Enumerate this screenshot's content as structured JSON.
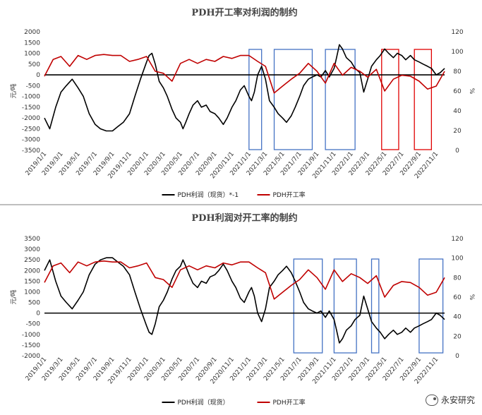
{
  "chart_data": [
    {
      "type": "line",
      "title": "PDH开工率对利润的制约",
      "ylabel_left": "元/吨",
      "ylabel_right": "%",
      "ylim_left": [
        -3500,
        2000
      ],
      "yticks_left": [
        2000,
        1500,
        1000,
        500,
        0,
        -500,
        -1000,
        -1500,
        -2000,
        -2500,
        -3000,
        -3500
      ],
      "ylim_right": [
        0,
        120
      ],
      "yticks_right": [
        0,
        20,
        40,
        60,
        80,
        100,
        120
      ],
      "x_ticks": [
        "2019/1/1",
        "2019/3/1",
        "2019/5/1",
        "2019/7/1",
        "2019/9/1",
        "2019/11/1",
        "2020/1/1",
        "2020/3/1",
        "2020/5/1",
        "2020/7/1",
        "2020/9/1",
        "2020/11/1",
        "2021/1/1",
        "2021/3/1",
        "2021/5/1",
        "2021/7/1",
        "2021/9/1",
        "2021/11/1",
        "2022/1/1",
        "2022/3/1",
        "2022/5/1",
        "2022/7/1",
        "2022/9/1",
        "2022/11/1"
      ],
      "series": [
        {
          "name": "PDH利润（现货）*-1",
          "color": "#000000",
          "axis": "left",
          "x": [
            "2019/1/1",
            "2019/1/20",
            "2019/2/10",
            "2019/3/1",
            "2019/3/20",
            "2019/4/10",
            "2019/5/1",
            "2019/5/20",
            "2019/6/10",
            "2019/7/1",
            "2019/7/20",
            "2019/8/10",
            "2019/9/1",
            "2019/9/20",
            "2019/10/10",
            "2019/11/1",
            "2019/11/20",
            "2019/12/10",
            "2020/1/1",
            "2020/1/10",
            "2020/1/20",
            "2020/2/1",
            "2020/2/15",
            "2020/3/1",
            "2020/3/15",
            "2020/4/1",
            "2020/4/15",
            "2020/5/1",
            "2020/5/10",
            "2020/5/20",
            "2020/6/1",
            "2020/6/15",
            "2020/7/1",
            "2020/7/15",
            "2020/8/1",
            "2020/8/15",
            "2020/9/1",
            "2020/9/15",
            "2020/10/1",
            "2020/10/15",
            "2020/11/1",
            "2020/11/15",
            "2020/12/1",
            "2020/12/15",
            "2021/1/1",
            "2021/1/10",
            "2021/1/20",
            "2021/2/1",
            "2021/2/15",
            "2021/3/1",
            "2021/3/15",
            "2021/4/1",
            "2021/4/15",
            "2021/5/1",
            "2021/5/15",
            "2021/6/1",
            "2021/6/15",
            "2021/7/1",
            "2021/7/15",
            "2021/8/1",
            "2021/8/15",
            "2021/9/1",
            "2021/9/15",
            "2021/10/1",
            "2021/10/15",
            "2021/11/1",
            "2021/11/10",
            "2021/11/20",
            "2021/12/1",
            "2021/12/15",
            "2022/1/1",
            "2022/1/15",
            "2022/2/1",
            "2022/2/15",
            "2022/3/1",
            "2022/3/15",
            "2022/4/1",
            "2022/4/15",
            "2022/5/1",
            "2022/5/15",
            "2022/6/1",
            "2022/6/15",
            "2022/7/1",
            "2022/7/15",
            "2022/8/1",
            "2022/8/15",
            "2022/9/1",
            "2022/9/15",
            "2022/10/1",
            "2022/10/15",
            "2022/11/1",
            "2022/11/15",
            "2022/12/1"
          ],
          "values": [
            -2000,
            -2500,
            -1500,
            -800,
            -500,
            -200,
            -600,
            -1000,
            -1800,
            -2300,
            -2500,
            -2600,
            -2600,
            -2400,
            -2200,
            -1800,
            -1000,
            -200,
            600,
            900,
            1000,
            500,
            -300,
            -600,
            -1000,
            -1600,
            -2000,
            -2200,
            -2500,
            -2200,
            -1800,
            -1400,
            -1200,
            -1500,
            -1400,
            -1700,
            -1800,
            -2000,
            -2300,
            -2000,
            -1500,
            -1200,
            -700,
            -500,
            -1000,
            -1200,
            -800,
            0,
            400,
            -200,
            -1200,
            -1500,
            -1800,
            -2000,
            -2200,
            -1900,
            -1500,
            -1000,
            -500,
            -200,
            -100,
            0,
            -100,
            200,
            -100,
            300,
            800,
            1400,
            1200,
            800,
            600,
            300,
            100,
            -800,
            -200,
            400,
            700,
            900,
            1200,
            1000,
            800,
            1000,
            900,
            700,
            900,
            700,
            600,
            500,
            400,
            300,
            0,
            100,
            300
          ]
        },
        {
          "name": "PDH开工率",
          "color": "#c00000",
          "axis": "right",
          "x": [
            "2019/1/1",
            "2019/2/1",
            "2019/3/1",
            "2019/4/1",
            "2019/5/1",
            "2019/6/1",
            "2019/7/1",
            "2019/8/1",
            "2019/9/1",
            "2019/10/1",
            "2019/11/1",
            "2019/12/1",
            "2020/1/1",
            "2020/2/1",
            "2020/3/1",
            "2020/4/1",
            "2020/5/1",
            "2020/6/1",
            "2020/7/1",
            "2020/8/1",
            "2020/9/1",
            "2020/10/1",
            "2020/11/1",
            "2020/12/1",
            "2021/1/1",
            "2021/2/1",
            "2021/3/1",
            "2021/4/1",
            "2021/5/1",
            "2021/6/1",
            "2021/7/1",
            "2021/8/1",
            "2021/9/1",
            "2021/10/1",
            "2021/11/1",
            "2021/12/1",
            "2022/1/1",
            "2022/2/1",
            "2022/3/1",
            "2022/4/1",
            "2022/5/1",
            "2022/6/1",
            "2022/7/1",
            "2022/8/1",
            "2022/9/1",
            "2022/10/1",
            "2022/11/1",
            "2022/12/1"
          ],
          "values": [
            75,
            92,
            95,
            85,
            96,
            92,
            96,
            97,
            96,
            96,
            90,
            92,
            95,
            80,
            78,
            70,
            88,
            92,
            88,
            92,
            90,
            95,
            93,
            96,
            96,
            90,
            85,
            58,
            65,
            72,
            78,
            88,
            80,
            68,
            88,
            76,
            84,
            80,
            74,
            82,
            60,
            72,
            76,
            75,
            70,
            62,
            65,
            80
          ]
        }
      ],
      "highlight_boxes": [
        {
          "start": "2021/1/1",
          "end": "2021/2/15",
          "color": "#4472c4"
        },
        {
          "start": "2021/4/1",
          "end": "2021/8/15",
          "color": "#4472c4"
        },
        {
          "start": "2021/10/1",
          "end": "2022/1/15",
          "color": "#4472c4"
        },
        {
          "start": "2022/4/20",
          "end": "2022/6/20",
          "color": "#e00000"
        },
        {
          "start": "2022/8/15",
          "end": "2022/10/15",
          "color": "#e00000"
        }
      ],
      "legend_position": "bottom"
    },
    {
      "type": "line",
      "title": "PDH利润对开工率的制约",
      "ylabel_left": "元/吨",
      "ylabel_right": "%",
      "ylim_left": [
        -2000,
        3500
      ],
      "yticks_left": [
        3500,
        3000,
        2500,
        2000,
        1500,
        1000,
        500,
        0,
        -500,
        -1000,
        -1500,
        -2000
      ],
      "ylim_right": [
        0,
        120
      ],
      "yticks_right": [
        0,
        20,
        40,
        60,
        80,
        100,
        120
      ],
      "x_ticks": [
        "2019/1/1",
        "2019/3/1",
        "2019/5/1",
        "2019/7/1",
        "2019/9/1",
        "2019/11/1",
        "2020/1/1",
        "2020/3/1",
        "2020/5/1",
        "2020/7/1",
        "2020/9/1",
        "2020/11/1",
        "2021/1/1",
        "2021/3/1",
        "2021/5/1",
        "2021/7/1",
        "2021/9/1",
        "2021/11/1",
        "2022/1/1",
        "2022/3/1",
        "2022/5/1",
        "2022/7/1",
        "2022/9/1",
        "2022/11/1"
      ],
      "series": [
        {
          "name": "PDH利润（现货）",
          "color": "#000000",
          "axis": "left",
          "x": [
            "2019/1/1",
            "2019/1/20",
            "2019/2/10",
            "2019/3/1",
            "2019/3/20",
            "2019/4/10",
            "2019/5/1",
            "2019/5/20",
            "2019/6/10",
            "2019/7/1",
            "2019/7/20",
            "2019/8/10",
            "2019/9/1",
            "2019/9/20",
            "2019/10/10",
            "2019/11/1",
            "2019/11/20",
            "2019/12/10",
            "2020/1/1",
            "2020/1/10",
            "2020/1/20",
            "2020/2/1",
            "2020/2/15",
            "2020/3/1",
            "2020/3/15",
            "2020/4/1",
            "2020/4/15",
            "2020/5/1",
            "2020/5/10",
            "2020/5/20",
            "2020/6/1",
            "2020/6/15",
            "2020/7/1",
            "2020/7/15",
            "2020/8/1",
            "2020/8/15",
            "2020/9/1",
            "2020/9/15",
            "2020/10/1",
            "2020/10/15",
            "2020/11/1",
            "2020/11/15",
            "2020/12/1",
            "2020/12/15",
            "2021/1/1",
            "2021/1/10",
            "2021/1/20",
            "2021/2/1",
            "2021/2/15",
            "2021/3/1",
            "2021/3/15",
            "2021/4/1",
            "2021/4/15",
            "2021/5/1",
            "2021/5/15",
            "2021/6/1",
            "2021/6/15",
            "2021/7/1",
            "2021/7/15",
            "2021/8/1",
            "2021/8/15",
            "2021/9/1",
            "2021/9/15",
            "2021/10/1",
            "2021/10/15",
            "2021/11/1",
            "2021/11/10",
            "2021/11/20",
            "2021/12/1",
            "2021/12/15",
            "2022/1/1",
            "2022/1/15",
            "2022/2/1",
            "2022/2/15",
            "2022/3/1",
            "2022/3/15",
            "2022/4/1",
            "2022/4/15",
            "2022/5/1",
            "2022/5/15",
            "2022/6/1",
            "2022/6/15",
            "2022/7/1",
            "2022/7/15",
            "2022/8/1",
            "2022/8/15",
            "2022/9/1",
            "2022/9/15",
            "2022/10/1",
            "2022/10/15",
            "2022/11/1",
            "2022/11/15",
            "2022/12/1"
          ],
          "values": [
            2000,
            2500,
            1500,
            800,
            500,
            200,
            600,
            1000,
            1800,
            2300,
            2500,
            2600,
            2600,
            2400,
            2200,
            1800,
            1000,
            200,
            -600,
            -900,
            -1000,
            -500,
            300,
            600,
            1000,
            1600,
            2000,
            2200,
            2500,
            2200,
            1800,
            1400,
            1200,
            1500,
            1400,
            1700,
            1800,
            2000,
            2300,
            2000,
            1500,
            1200,
            700,
            500,
            1000,
            1200,
            800,
            0,
            -400,
            200,
            1200,
            1500,
            1800,
            2000,
            2200,
            1900,
            1500,
            1000,
            500,
            200,
            100,
            0,
            100,
            -200,
            100,
            -300,
            -800,
            -1400,
            -1200,
            -800,
            -600,
            -300,
            -100,
            800,
            200,
            -400,
            -700,
            -900,
            -1200,
            -1000,
            -800,
            -1000,
            -900,
            -700,
            -900,
            -700,
            -600,
            -500,
            -400,
            -300,
            0,
            -100,
            -300
          ]
        },
        {
          "name": "PDH开工率",
          "color": "#c00000",
          "axis": "right",
          "x": [
            "2019/1/1",
            "2019/2/1",
            "2019/3/1",
            "2019/4/1",
            "2019/5/1",
            "2019/6/1",
            "2019/7/1",
            "2019/8/1",
            "2019/9/1",
            "2019/10/1",
            "2019/11/1",
            "2019/12/1",
            "2020/1/1",
            "2020/2/1",
            "2020/3/1",
            "2020/4/1",
            "2020/5/1",
            "2020/6/1",
            "2020/7/1",
            "2020/8/1",
            "2020/9/1",
            "2020/10/1",
            "2020/11/1",
            "2020/12/1",
            "2021/1/1",
            "2021/2/1",
            "2021/3/1",
            "2021/4/1",
            "2021/5/1",
            "2021/6/1",
            "2021/7/1",
            "2021/8/1",
            "2021/9/1",
            "2021/10/1",
            "2021/11/1",
            "2021/12/1",
            "2022/1/1",
            "2022/2/1",
            "2022/3/1",
            "2022/4/1",
            "2022/5/1",
            "2022/6/1",
            "2022/7/1",
            "2022/8/1",
            "2022/9/1",
            "2022/10/1",
            "2022/11/1",
            "2022/12/1"
          ],
          "values": [
            75,
            92,
            95,
            85,
            96,
            92,
            96,
            97,
            96,
            96,
            90,
            92,
            95,
            80,
            78,
            70,
            88,
            92,
            88,
            92,
            90,
            95,
            93,
            96,
            96,
            90,
            85,
            58,
            65,
            72,
            78,
            88,
            80,
            68,
            88,
            76,
            84,
            80,
            74,
            82,
            60,
            72,
            76,
            75,
            70,
            62,
            65,
            80
          ]
        }
      ],
      "highlight_boxes": [
        {
          "start": "2021/6/10",
          "end": "2021/9/20",
          "color": "#4472c4"
        },
        {
          "start": "2021/11/1",
          "end": "2022/1/20",
          "color": "#4472c4"
        },
        {
          "start": "2022/3/15",
          "end": "2022/4/10",
          "color": "#4472c4"
        },
        {
          "start": "2022/9/1",
          "end": "2022/11/25",
          "color": "#4472c4"
        }
      ],
      "legend_position": "bottom"
    }
  ],
  "watermark": "永安研究"
}
